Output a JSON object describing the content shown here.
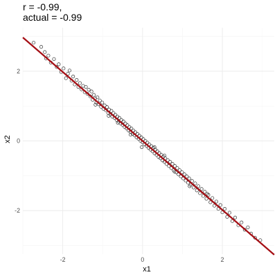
{
  "chart_data": {
    "type": "scatter",
    "title": [
      "r = -0.99,",
      "actual = -0.99"
    ],
    "xlabel": "x1",
    "ylabel": "x2",
    "xlim": [
      -3.0,
      3.3
    ],
    "ylim": [
      -3.25,
      3.25
    ],
    "x_ticks": [
      -2,
      0,
      2
    ],
    "x_tick_labels": [
      "-2",
      "0",
      "2"
    ],
    "y_ticks": [
      -2,
      0,
      2
    ],
    "y_tick_labels": [
      "-2",
      "0",
      "2"
    ],
    "grid": true,
    "legend": "none",
    "marker": "open-circle",
    "point_color": "#333333",
    "fit_line": {
      "slope": -0.99,
      "intercept": 0.0,
      "color": "#a50f15"
    },
    "points": [
      [
        -2.73,
        2.82
      ],
      [
        -2.54,
        2.7
      ],
      [
        -2.45,
        2.55
      ],
      [
        -2.42,
        2.37
      ],
      [
        -2.36,
        2.45
      ],
      [
        -2.3,
        2.25
      ],
      [
        -2.22,
        2.35
      ],
      [
        -2.15,
        2.12
      ],
      [
        -2.1,
        2.2
      ],
      [
        -2.04,
        1.98
      ],
      [
        -1.98,
        2.08
      ],
      [
        -1.92,
        1.8
      ],
      [
        -1.87,
        1.93
      ],
      [
        -1.83,
        2.02
      ],
      [
        -1.78,
        1.73
      ],
      [
        -1.74,
        1.85
      ],
      [
        -1.7,
        1.62
      ],
      [
        -1.65,
        1.75
      ],
      [
        -1.61,
        1.55
      ],
      [
        -1.57,
        1.66
      ],
      [
        -1.53,
        1.48
      ],
      [
        -1.49,
        1.58
      ],
      [
        -1.45,
        1.4
      ],
      [
        -1.42,
        1.55
      ],
      [
        -1.38,
        1.35
      ],
      [
        -1.35,
        1.47
      ],
      [
        -1.31,
        1.28
      ],
      [
        -1.28,
        1.42
      ],
      [
        -1.25,
        1.18
      ],
      [
        -1.22,
        1.32
      ],
      [
        -1.19,
        1.22
      ],
      [
        -1.16,
        1.1
      ],
      [
        -1.13,
        1.25
      ],
      [
        -1.1,
        1.05
      ],
      [
        -1.07,
        1.16
      ],
      [
        -1.04,
        0.98
      ],
      [
        -1.01,
        1.1
      ],
      [
        -0.98,
        0.92
      ],
      [
        -0.95,
        1.02
      ],
      [
        -0.92,
        0.88
      ],
      [
        -0.89,
        0.97
      ],
      [
        -0.86,
        0.8
      ],
      [
        -0.84,
        0.9
      ],
      [
        -0.81,
        0.76
      ],
      [
        -0.78,
        0.86
      ],
      [
        -0.76,
        0.7
      ],
      [
        -0.73,
        0.8
      ],
      [
        -0.7,
        0.66
      ],
      [
        -0.68,
        0.75
      ],
      [
        -0.65,
        0.6
      ],
      [
        -0.63,
        0.7
      ],
      [
        -0.6,
        0.55
      ],
      [
        -0.58,
        0.66
      ],
      [
        -0.55,
        0.5
      ],
      [
        -0.53,
        0.6
      ],
      [
        -0.5,
        0.46
      ],
      [
        -0.48,
        0.56
      ],
      [
        -0.45,
        0.4
      ],
      [
        -0.43,
        0.5
      ],
      [
        -0.4,
        0.36
      ],
      [
        -0.38,
        0.45
      ],
      [
        -0.35,
        0.3
      ],
      [
        -0.33,
        0.4
      ],
      [
        -0.3,
        0.26
      ],
      [
        -0.28,
        0.36
      ],
      [
        -0.25,
        0.2
      ],
      [
        -0.23,
        0.3
      ],
      [
        -0.2,
        0.16
      ],
      [
        -0.18,
        0.25
      ],
      [
        -0.15,
        0.1
      ],
      [
        -0.13,
        0.2
      ],
      [
        -0.1,
        0.06
      ],
      [
        -0.08,
        0.15
      ],
      [
        -0.05,
        0.0
      ],
      [
        -0.03,
        0.1
      ],
      [
        0.0,
        -0.04
      ],
      [
        0.02,
        0.05
      ],
      [
        0.05,
        -0.1
      ],
      [
        0.07,
        0.0
      ],
      [
        0.1,
        -0.14
      ],
      [
        0.12,
        -0.05
      ],
      [
        0.15,
        -0.2
      ],
      [
        0.17,
        -0.1
      ],
      [
        0.2,
        -0.25
      ],
      [
        0.22,
        -0.15
      ],
      [
        0.25,
        -0.3
      ],
      [
        0.27,
        -0.2
      ],
      [
        0.3,
        -0.36
      ],
      [
        0.32,
        -0.25
      ],
      [
        0.35,
        -0.4
      ],
      [
        0.37,
        -0.3
      ],
      [
        0.4,
        -0.46
      ],
      [
        0.42,
        -0.35
      ],
      [
        0.45,
        -0.5
      ],
      [
        0.47,
        -0.4
      ],
      [
        0.5,
        -0.56
      ],
      [
        0.52,
        -0.45
      ],
      [
        0.55,
        -0.6
      ],
      [
        0.57,
        -0.5
      ],
      [
        0.6,
        -0.66
      ],
      [
        0.63,
        -0.55
      ],
      [
        0.66,
        -0.72
      ],
      [
        0.69,
        -0.6
      ],
      [
        0.72,
        -0.78
      ],
      [
        0.75,
        -0.66
      ],
      [
        0.78,
        -0.84
      ],
      [
        0.81,
        -0.72
      ],
      [
        0.84,
        -0.9
      ],
      [
        0.87,
        -0.78
      ],
      [
        0.9,
        -0.96
      ],
      [
        0.93,
        -0.84
      ],
      [
        0.96,
        -1.02
      ],
      [
        0.99,
        -0.9
      ],
      [
        1.02,
        -1.08
      ],
      [
        1.05,
        -0.96
      ],
      [
        1.08,
        -1.14
      ],
      [
        1.11,
        -1.02
      ],
      [
        1.14,
        -1.2
      ],
      [
        1.17,
        -1.08
      ],
      [
        1.2,
        -1.26
      ],
      [
        1.24,
        -1.15
      ],
      [
        1.28,
        -1.34
      ],
      [
        1.32,
        -1.22
      ],
      [
        1.36,
        -1.42
      ],
      [
        1.4,
        -1.3
      ],
      [
        1.44,
        -1.5
      ],
      [
        1.48,
        -1.38
      ],
      [
        1.52,
        -1.58
      ],
      [
        1.56,
        -1.46
      ],
      [
        1.6,
        -1.66
      ],
      [
        1.65,
        -1.55
      ],
      [
        1.7,
        -1.76
      ],
      [
        1.75,
        -1.64
      ],
      [
        1.8,
        -1.86
      ],
      [
        1.85,
        -1.74
      ],
      [
        1.9,
        -1.95
      ],
      [
        1.95,
        -1.84
      ],
      [
        2.0,
        -2.05
      ],
      [
        2.06,
        -1.95
      ],
      [
        2.12,
        -2.18
      ],
      [
        2.18,
        -2.06
      ],
      [
        2.25,
        -2.3
      ],
      [
        2.32,
        -2.2
      ],
      [
        2.4,
        -2.42
      ],
      [
        2.48,
        -2.34
      ],
      [
        2.56,
        -2.55
      ],
      [
        2.64,
        -2.48
      ],
      [
        2.72,
        -2.66
      ],
      [
        2.82,
        -2.78
      ],
      [
        2.95,
        -2.85
      ],
      [
        -0.62,
        0.52
      ],
      [
        -0.02,
        -0.18
      ],
      [
        0.55,
        -0.42
      ],
      [
        1.18,
        -1.3
      ],
      [
        -1.18,
        1.04
      ],
      [
        0.3,
        -0.18
      ],
      [
        -0.3,
        0.18
      ],
      [
        0.8,
        -0.88
      ],
      [
        -0.85,
        0.72
      ],
      [
        1.62,
        -1.52
      ]
    ]
  }
}
